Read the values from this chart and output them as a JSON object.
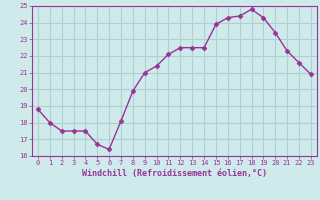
{
  "x": [
    0,
    1,
    2,
    3,
    4,
    5,
    6,
    7,
    8,
    9,
    10,
    11,
    12,
    13,
    14,
    15,
    16,
    17,
    18,
    19,
    20,
    21,
    22,
    23
  ],
  "y": [
    18.8,
    18.0,
    17.5,
    17.5,
    17.5,
    16.7,
    16.4,
    18.1,
    19.9,
    21.0,
    21.4,
    22.1,
    22.5,
    22.5,
    22.5,
    23.9,
    24.3,
    24.4,
    24.8,
    24.3,
    23.4,
    22.3,
    21.6,
    20.9
  ],
  "line_color": "#993399",
  "marker": "D",
  "marker_size": 2.5,
  "xlabel": "Windchill (Refroidissement éolien,°C)",
  "xlim": [
    -0.5,
    23.5
  ],
  "ylim": [
    16,
    25
  ],
  "yticks": [
    16,
    17,
    18,
    19,
    20,
    21,
    22,
    23,
    24,
    25
  ],
  "xticks": [
    0,
    1,
    2,
    3,
    4,
    5,
    6,
    7,
    8,
    9,
    10,
    11,
    12,
    13,
    14,
    15,
    16,
    17,
    18,
    19,
    20,
    21,
    22,
    23
  ],
  "bg_color": "#ceeaea",
  "grid_color": "#b0d0d0",
  "tick_label_color": "#993399",
  "xlabel_color": "#993399",
  "line_width": 1.0,
  "font_family": "monospace",
  "font_size_tick": 5.0,
  "font_size_xlabel": 6.0
}
